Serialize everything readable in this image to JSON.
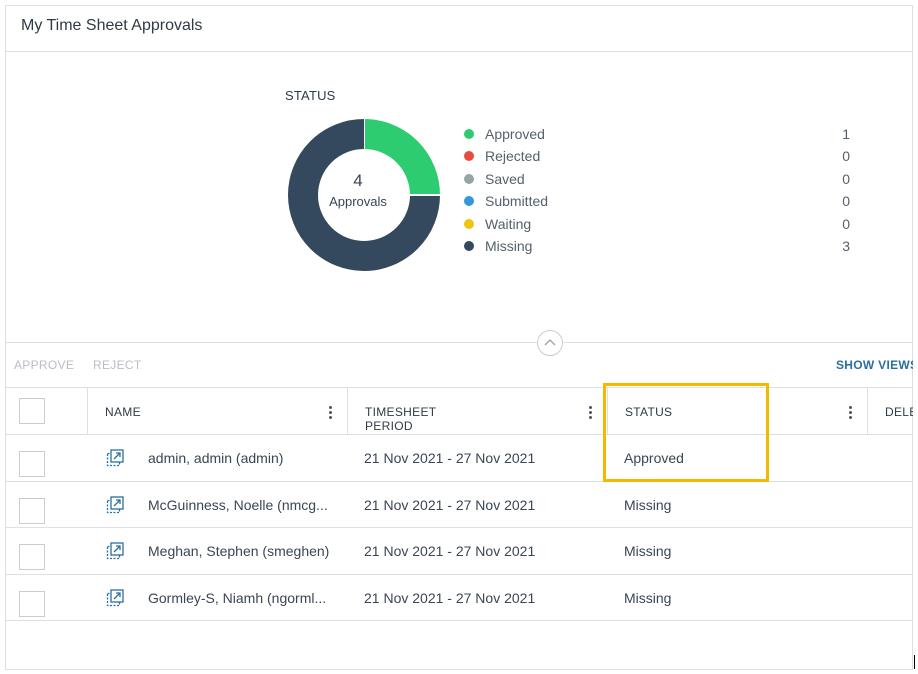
{
  "panel": {
    "title": "My Time Sheet Approvals"
  },
  "chart_data": {
    "type": "pie",
    "title": "STATUS",
    "center_value": "4",
    "center_label": "Approvals",
    "categories": [
      "Approved",
      "Rejected",
      "Saved",
      "Submitted",
      "Waiting",
      "Missing"
    ],
    "values": [
      1,
      0,
      0,
      0,
      0,
      3
    ],
    "colors": [
      "#2ecc71",
      "#e74c3c",
      "#95a5a6",
      "#3498db",
      "#f1c40f",
      "#34495e"
    ],
    "legend": "right"
  },
  "toolbar": {
    "approve": "APPROVE",
    "reject": "REJECT",
    "show_views": "SHOW VIEWS"
  },
  "table": {
    "columns": [
      "NAME",
      "TIMESHEET PERIOD",
      "STATUS",
      "DELE"
    ],
    "rows": [
      {
        "name": "admin, admin (admin)",
        "period": "21 Nov 2021 - 27 Nov 2021",
        "status": "Approved"
      },
      {
        "name": "McGuinness, Noelle (nmcg...",
        "period": "21 Nov 2021 - 27 Nov 2021",
        "status": "Missing"
      },
      {
        "name": "Meghan, Stephen (smeghen)",
        "period": "21 Nov 2021 - 27 Nov 2021",
        "status": "Missing"
      },
      {
        "name": "Gormley-S, Niamh (ngorml...",
        "period": "21 Nov 2021 - 27 Nov 2021",
        "status": "Missing"
      }
    ]
  },
  "highlight_color": "#f5b800",
  "icons": {
    "collapse": "chevron-up-icon",
    "open": "open-external-icon",
    "column_menu": "kebab-menu-icon"
  }
}
